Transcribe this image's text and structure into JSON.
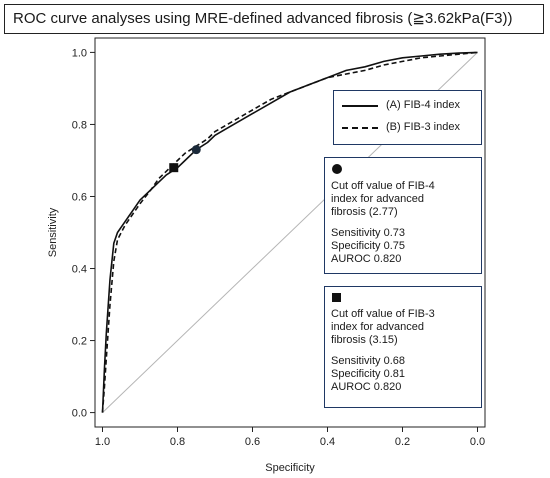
{
  "title": "ROC curve analyses using MRE-defined advanced fibrosis (≧3.62kPa(F3))",
  "chart_data": {
    "type": "line",
    "title": "ROC curve analyses using MRE-defined advanced fibrosis (≧3.62kPa(F3))",
    "xlabel": "Specificity",
    "ylabel": "Sensitivity",
    "xlim": [
      1.02,
      -0.02
    ],
    "ylim": [
      -0.04,
      1.04
    ],
    "x_ticks": [
      1.0,
      0.8,
      0.6,
      0.4,
      0.2,
      0.0
    ],
    "y_ticks": [
      0.0,
      0.2,
      0.4,
      0.6,
      0.8,
      1.0
    ],
    "x_tick_labels": [
      "1.0",
      "0.8",
      "0.6",
      "0.4",
      "0.2",
      "0.0"
    ],
    "y_tick_labels": [
      "0.0",
      "0.2",
      "0.4",
      "0.6",
      "0.8",
      "1.0"
    ],
    "reference_line": {
      "x": [
        1.0,
        0.0
      ],
      "y": [
        0.0,
        1.0
      ]
    },
    "series": [
      {
        "name": "(A) FIB-4 index",
        "style": "solid",
        "x": [
          1.0,
          0.995,
          0.99,
          0.98,
          0.97,
          0.96,
          0.94,
          0.92,
          0.9,
          0.87,
          0.85,
          0.83,
          0.8,
          0.78,
          0.75,
          0.72,
          0.7,
          0.65,
          0.6,
          0.55,
          0.5,
          0.45,
          0.4,
          0.35,
          0.3,
          0.25,
          0.2,
          0.15,
          0.1,
          0.05,
          0.0
        ],
        "y": [
          0.0,
          0.12,
          0.22,
          0.37,
          0.47,
          0.5,
          0.53,
          0.56,
          0.59,
          0.62,
          0.64,
          0.66,
          0.68,
          0.7,
          0.73,
          0.75,
          0.77,
          0.8,
          0.83,
          0.86,
          0.89,
          0.91,
          0.93,
          0.95,
          0.96,
          0.975,
          0.985,
          0.99,
          0.995,
          0.998,
          1.0
        ]
      },
      {
        "name": "(B) FIB-3 index",
        "style": "dashed",
        "x": [
          1.0,
          0.995,
          0.99,
          0.98,
          0.97,
          0.96,
          0.94,
          0.92,
          0.9,
          0.87,
          0.85,
          0.83,
          0.8,
          0.78,
          0.75,
          0.72,
          0.7,
          0.65,
          0.6,
          0.55,
          0.5,
          0.45,
          0.4,
          0.35,
          0.3,
          0.25,
          0.2,
          0.15,
          0.1,
          0.05,
          0.0
        ],
        "y": [
          0.0,
          0.07,
          0.15,
          0.3,
          0.42,
          0.48,
          0.52,
          0.55,
          0.58,
          0.62,
          0.65,
          0.67,
          0.7,
          0.72,
          0.74,
          0.76,
          0.78,
          0.81,
          0.84,
          0.87,
          0.89,
          0.91,
          0.93,
          0.94,
          0.95,
          0.965,
          0.975,
          0.985,
          0.99,
          0.995,
          1.0
        ]
      }
    ],
    "cutoff_points": [
      {
        "series": "(A) FIB-4 index",
        "marker": "circle",
        "specificity": 0.75,
        "sensitivity": 0.73
      },
      {
        "series": "(B) FIB-3 index",
        "marker": "square",
        "specificity": 0.81,
        "sensitivity": 0.68
      }
    ],
    "legend": {
      "position": "right",
      "entries": [
        "(A) FIB-4 index",
        "(B) FIB-3 index"
      ]
    }
  },
  "annotations": {
    "fib4": {
      "line1": "Cut off value of FIB-4",
      "line2": "index for advanced",
      "line3": "fibrosis (2.77)",
      "sensitivity": "Sensitivity 0.73",
      "specificity": "Specificity 0.75",
      "auroc": "AUROC 0.820"
    },
    "fib3": {
      "line1": "Cut off value of FIB-3",
      "line2": "index for advanced",
      "line3": "fibrosis (3.15)",
      "sensitivity": "Sensitivity 0.68",
      "specificity": "Specificity 0.81",
      "auroc": "AUROC 0.820"
    }
  }
}
